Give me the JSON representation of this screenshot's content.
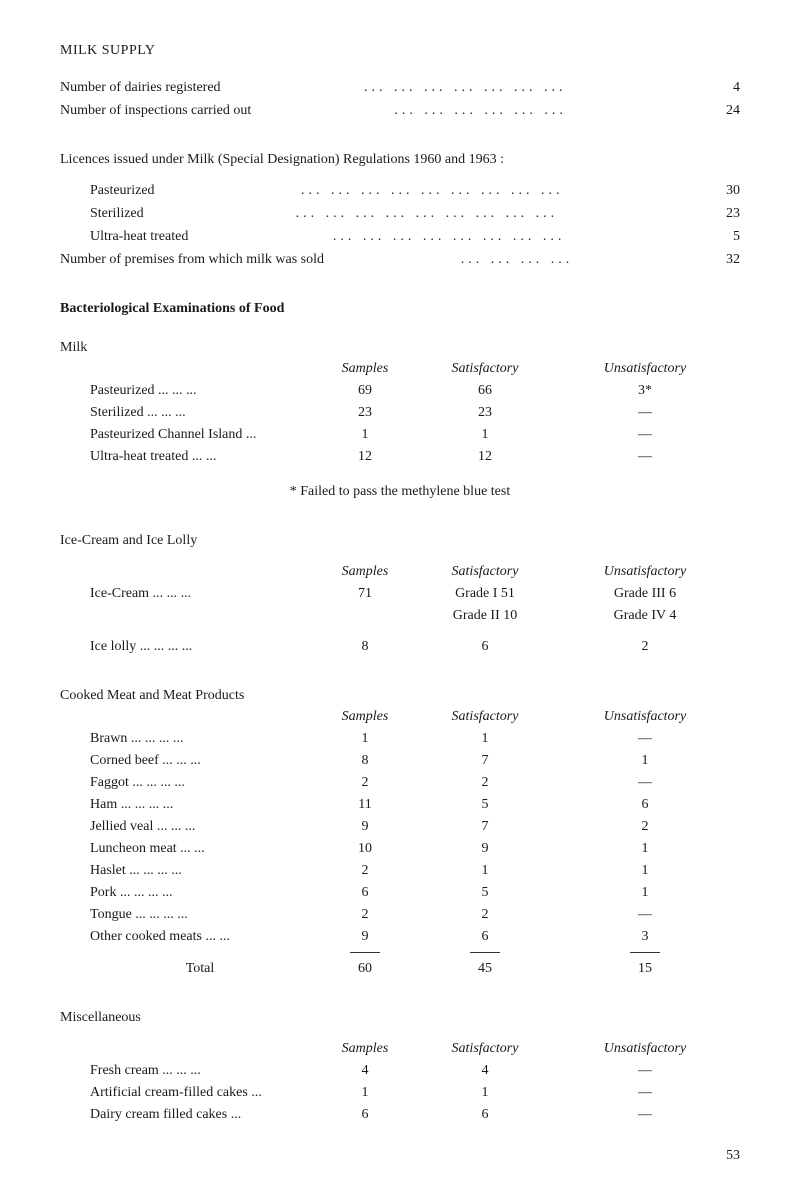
{
  "title": "MILK SUPPLY",
  "registry": {
    "items": [
      {
        "label": "Number of dairies registered",
        "dots": "...   ...   ...   ...   ...   ...   ...",
        "value": "4"
      },
      {
        "label": "Number of inspections carried out",
        "dots": "...   ...   ...   ...   ...   ...",
        "value": "24"
      }
    ]
  },
  "licences": {
    "heading": "Licences issued under Milk (Special Designation) Regulations 1960 and 1963 :",
    "items": [
      {
        "label": "Pasteurized",
        "dots": "...   ...   ...   ...   ...   ...   ...   ...   ...",
        "value": "30",
        "indent": true
      },
      {
        "label": "Sterilized",
        "dots": "...   ...   ...   ...   ...   ...   ...   ...   ...",
        "value": "23",
        "indent": true
      },
      {
        "label": "Ultra-heat treated",
        "dots": "...   ...   ...   ...   ...   ...   ...   ...",
        "value": "5",
        "indent": true
      },
      {
        "label": "Number of premises from which milk was sold",
        "dots": "...   ...   ...   ...",
        "value": "32",
        "indent": false
      }
    ]
  },
  "bacteriological": {
    "heading": "Bacteriological Examinations of Food"
  },
  "milk": {
    "heading": "Milk",
    "cols": {
      "samples": "Samples",
      "satisfactory": "Satisfactory",
      "unsatisfactory": "Unsatisfactory"
    },
    "rows": [
      {
        "label": "Pasteurized   ...   ...   ...",
        "samples": "69",
        "satisfactory": "66",
        "unsatisfactory": "3*"
      },
      {
        "label": "Sterilized   ...   ...   ...",
        "samples": "23",
        "satisfactory": "23",
        "unsatisfactory": "—"
      },
      {
        "label": "Pasteurized Channel Island ...",
        "samples": "1",
        "satisfactory": "1",
        "unsatisfactory": "—"
      },
      {
        "label": "Ultra-heat treated   ...   ...",
        "samples": "12",
        "satisfactory": "12",
        "unsatisfactory": "—"
      }
    ],
    "footnote": "* Failed to pass the methylene blue test"
  },
  "icecream": {
    "heading": "Ice-Cream and Ice Lolly",
    "cols": {
      "samples": "Samples",
      "satisfactory": "Satisfactory",
      "unsatisfactory": "Unsatisfactory"
    },
    "rows": [
      {
        "label": "Ice-Cream   ...   ...   ...",
        "samples": "71",
        "satisfactory": "Grade I  51",
        "unsatisfactory": "Grade III 6"
      },
      {
        "label": "",
        "samples": "",
        "satisfactory": "Grade II 10",
        "unsatisfactory": "Grade IV 4"
      }
    ],
    "lolly": {
      "label": "Ice lolly ...   ...   ...   ...",
      "samples": "8",
      "satisfactory": "6",
      "unsatisfactory": "2"
    }
  },
  "cooked": {
    "heading": "Cooked Meat and Meat Products",
    "cols": {
      "samples": "Samples",
      "satisfactory": "Satisfactory",
      "unsatisfactory": "Unsatisfactory"
    },
    "rows": [
      {
        "label": "Brawn ...   ...   ...   ...",
        "samples": "1",
        "satisfactory": "1",
        "unsatisfactory": "—"
      },
      {
        "label": "Corned beef   ...   ...   ...",
        "samples": "8",
        "satisfactory": "7",
        "unsatisfactory": "1"
      },
      {
        "label": "Faggot ...   ...   ...   ...",
        "samples": "2",
        "satisfactory": "2",
        "unsatisfactory": "—"
      },
      {
        "label": "Ham   ...   ...   ...   ...",
        "samples": "11",
        "satisfactory": "5",
        "unsatisfactory": "6"
      },
      {
        "label": "Jellied veal   ...   ...   ...",
        "samples": "9",
        "satisfactory": "7",
        "unsatisfactory": "2"
      },
      {
        "label": "Luncheon meat   ...   ...",
        "samples": "10",
        "satisfactory": "9",
        "unsatisfactory": "1"
      },
      {
        "label": "Haslet ...   ...   ...   ...",
        "samples": "2",
        "satisfactory": "1",
        "unsatisfactory": "1"
      },
      {
        "label": "Pork   ...   ...   ...   ...",
        "samples": "6",
        "satisfactory": "5",
        "unsatisfactory": "1"
      },
      {
        "label": "Tongue ...   ...   ...   ...",
        "samples": "2",
        "satisfactory": "2",
        "unsatisfactory": "—"
      },
      {
        "label": "Other cooked meats ...   ...",
        "samples": "9",
        "satisfactory": "6",
        "unsatisfactory": "3"
      }
    ],
    "total": {
      "label": "Total",
      "samples": "60",
      "satisfactory": "45",
      "unsatisfactory": "15"
    }
  },
  "misc": {
    "heading": "Miscellaneous",
    "cols": {
      "samples": "Samples",
      "satisfactory": "Satisfactory",
      "unsatisfactory": "Unsatisfactory"
    },
    "rows": [
      {
        "label": "Fresh cream   ...   ...   ...",
        "samples": "4",
        "satisfactory": "4",
        "unsatisfactory": "—"
      },
      {
        "label": "Artificial cream-filled cakes ...",
        "samples": "1",
        "satisfactory": "1",
        "unsatisfactory": "—"
      },
      {
        "label": "Dairy cream filled cakes   ...",
        "samples": "6",
        "satisfactory": "6",
        "unsatisfactory": "—"
      }
    ]
  },
  "pageNum": "53"
}
